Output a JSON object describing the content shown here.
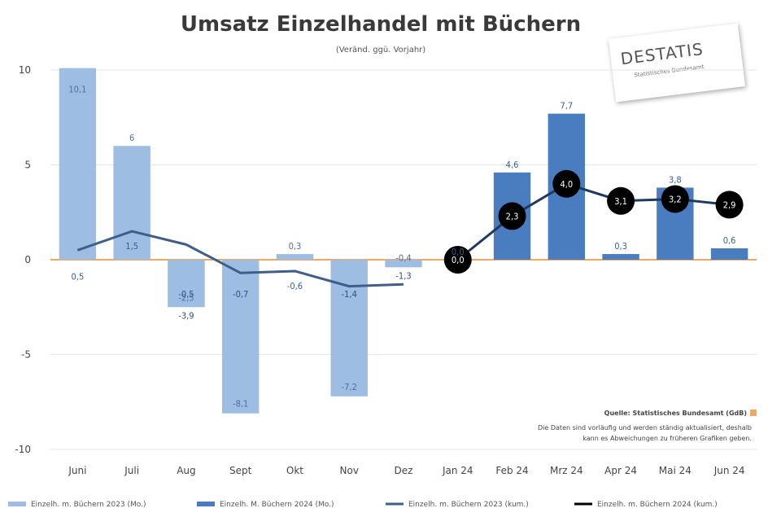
{
  "chart_data": {
    "type": "bar",
    "title": "Umsatz Einzelhandel mit Büchern",
    "subtitle": "(Veränd. ggü. Vorjahr)",
    "categories": [
      "Juni",
      "Juli",
      "Aug",
      "Sept",
      "Okt",
      "Nov",
      "Dez",
      "Jan 24",
      "Feb 24",
      "Mrz 24",
      "Apr 24",
      "Mai 24",
      "Jun 24"
    ],
    "ylim": [
      -10,
      10
    ],
    "yticks": [
      10,
      5,
      0,
      -5,
      -10
    ],
    "grid": true,
    "series": [
      {
        "name": "Einzelh. m. Büchern 2023 (Mo.)",
        "kind": "bar",
        "color": "#9dbde3",
        "values": [
          10.1,
          6.0,
          -2.5,
          -8.1,
          0.3,
          -7.2,
          -0.4,
          null,
          null,
          null,
          null,
          null,
          null
        ],
        "labels": [
          "10,1",
          "6",
          "-2,5",
          "-8,1",
          "0,3",
          "-7,2",
          "-0,4",
          "",
          "",
          "",
          "",
          "",
          ""
        ],
        "inner_labels": [
          "",
          "",
          "-0,5",
          "-0,7",
          "",
          "-1,4",
          "",
          "",
          "",
          "",
          "",
          "",
          ""
        ],
        "below_labels": [
          "",
          "",
          "-3,9",
          "",
          "",
          "",
          "-1,3",
          "",
          "",
          "",
          "",
          "",
          ""
        ]
      },
      {
        "name": "Einzelh. M. Büchern 2024 (Mo.)",
        "kind": "bar",
        "color": "#4a7cc0",
        "values": [
          null,
          null,
          null,
          null,
          null,
          null,
          null,
          0.0,
          4.6,
          7.7,
          0.3,
          3.8,
          0.6
        ],
        "labels": [
          "",
          "",
          "",
          "",
          "",
          "",
          "",
          "0,0",
          "4,6",
          "7,7",
          "0,3",
          "3,8",
          "0,6"
        ]
      },
      {
        "name": "Einzelh. m. Büchern 2023 (kum.)",
        "kind": "line",
        "color": "#3d5f8a",
        "values": [
          0.5,
          1.5,
          0.8,
          -0.7,
          -0.6,
          -1.4,
          -1.3,
          null,
          null,
          null,
          null,
          null,
          null
        ],
        "labels": [
          "0,5",
          "1,5",
          "",
          "",
          "-0,6",
          "",
          "",
          "",
          "",
          "",
          "",
          "",
          ""
        ]
      },
      {
        "name": "Einzelh. m. Büchern 2024 (kum.)",
        "kind": "line",
        "color": "#1f3a5f",
        "marker_color": "#000000",
        "values": [
          null,
          null,
          null,
          null,
          null,
          null,
          null,
          0.0,
          2.3,
          4.0,
          3.1,
          3.2,
          2.9
        ],
        "labels": [
          "",
          "",
          "",
          "",
          "",
          "",
          "",
          "0,0",
          "2,3",
          "4,0",
          "3,1",
          "3,2",
          "2,9"
        ]
      }
    ],
    "legend_position": "bottom",
    "annotation": {
      "source": "Quelle: Statistisches Bundesamt (GdB)",
      "lines": [
        "Die Daten sind vorläufig und werden ständig aktualisiert, deshalb",
        "kann es Abweichungen zu früheren Grafiken geben."
      ]
    }
  },
  "logo": {
    "text": "DESTATIS",
    "subtext": "Statistisches Bundesamt"
  },
  "colors": {
    "zero_line": "#f0a860",
    "grid": "#e6e6e6"
  }
}
